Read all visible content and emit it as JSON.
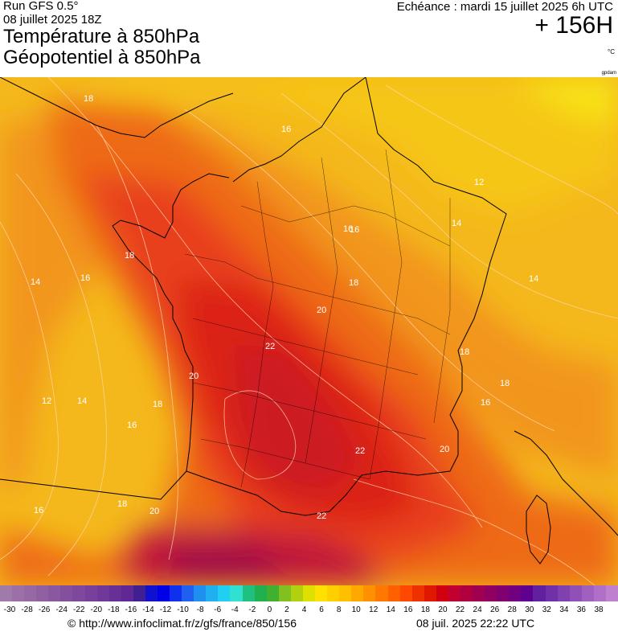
{
  "header": {
    "run": "Run GFS 0.5°",
    "date": "08 juillet 2025 18Z",
    "title1": "Température à 850hPa",
    "title2": "Géopotentiel à 850hPa",
    "echeance": "Echéance : mardi 15 juillet 2025 6h UTC",
    "hours": "+ 156H",
    "unit": "°C",
    "tag": "gpdam"
  },
  "map": {
    "contour_labels": [
      {
        "text": "18"
      },
      {
        "text": "16"
      },
      {
        "text": "14"
      },
      {
        "text": "12"
      },
      {
        "text": "16"
      },
      {
        "text": "18"
      },
      {
        "text": "20"
      },
      {
        "text": "22"
      },
      {
        "text": "20"
      },
      {
        "text": "18"
      },
      {
        "text": "16"
      },
      {
        "text": "14"
      },
      {
        "text": "16"
      },
      {
        "text": "14"
      },
      {
        "text": "12"
      },
      {
        "text": "14"
      },
      {
        "text": "18"
      },
      {
        "text": "20"
      },
      {
        "text": "16"
      },
      {
        "text": "18"
      },
      {
        "text": "22"
      },
      {
        "text": "20"
      },
      {
        "text": "22"
      },
      {
        "text": "18"
      },
      {
        "text": "16"
      },
      {
        "text": "18"
      },
      {
        "text": "16"
      }
    ],
    "colors": {
      "cool": "#f4c21a",
      "mid": "#f28c16",
      "warm": "#ea4a16",
      "hot": "#d61818",
      "veryhot": "#b00e3a"
    }
  },
  "scale": {
    "labels": [
      "-30",
      "-28",
      "-26",
      "-24",
      "-22",
      "-20",
      "-18",
      "-16",
      "-14",
      "-12",
      "-10",
      "-8",
      "-6",
      "-4",
      "-2",
      "0",
      "2",
      "4",
      "6",
      "8",
      "10",
      "12",
      "14",
      "16",
      "18",
      "20",
      "22",
      "24",
      "26",
      "28",
      "30",
      "32",
      "34",
      "36",
      "38"
    ],
    "colors": [
      "#a07aa8",
      "#9c70a6",
      "#9668a4",
      "#9060a2",
      "#8a58a0",
      "#84509e",
      "#7e489c",
      "#78409a",
      "#703898",
      "#683096",
      "#602894",
      "#402090",
      "#1010d0",
      "#0000e8",
      "#1030f0",
      "#2060f0",
      "#2090f0",
      "#20b0f0",
      "#20d0f0",
      "#30e0d0",
      "#20c080",
      "#20b050",
      "#40b030",
      "#80c020",
      "#b0d010",
      "#e0e000",
      "#ffe000",
      "#ffd000",
      "#ffc000",
      "#ffa800",
      "#ff9000",
      "#ff7800",
      "#ff6000",
      "#ff4800",
      "#f03000",
      "#e01800",
      "#d00010",
      "#c00030",
      "#b00040",
      "#a00050",
      "#900060",
      "#800070",
      "#700080",
      "#600090",
      "#6020a0",
      "#7030a8",
      "#8040b0",
      "#9050b8",
      "#a060c0",
      "#b070c8",
      "#c080d0"
    ]
  },
  "footer": {
    "left": "© http://www.infoclimat.fr/z/gfs/france/850/156",
    "right": "08 juil. 2025 22:22 UTC"
  }
}
